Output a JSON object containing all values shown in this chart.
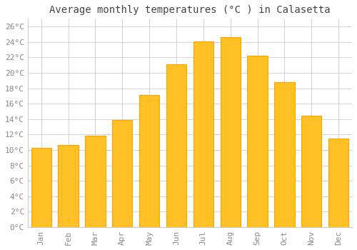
{
  "title": "Average monthly temperatures (°C ) in Calasetta",
  "months": [
    "Jan",
    "Feb",
    "Mar",
    "Apr",
    "May",
    "Jun",
    "Jul",
    "Aug",
    "Sep",
    "Oct",
    "Nov",
    "Dec"
  ],
  "values": [
    10.3,
    10.6,
    11.8,
    13.9,
    17.1,
    21.1,
    24.1,
    24.6,
    22.2,
    18.8,
    14.4,
    11.5
  ],
  "bar_color": "#FFC125",
  "bar_edge_color": "#FFA500",
  "background_color": "#FFFFFF",
  "grid_color": "#CCCCCC",
  "ytick_labels": [
    "0°C",
    "2°C",
    "4°C",
    "6°C",
    "8°C",
    "10°C",
    "12°C",
    "14°C",
    "16°C",
    "18°C",
    "20°C",
    "22°C",
    "24°C",
    "26°C"
  ],
  "ytick_values": [
    0,
    2,
    4,
    6,
    8,
    10,
    12,
    14,
    16,
    18,
    20,
    22,
    24,
    26
  ],
  "ylim": [
    0,
    27
  ],
  "title_fontsize": 10,
  "tick_fontsize": 8,
  "tick_label_color": "#888888",
  "title_color": "#444444",
  "font_family": "monospace",
  "bar_width": 0.75
}
